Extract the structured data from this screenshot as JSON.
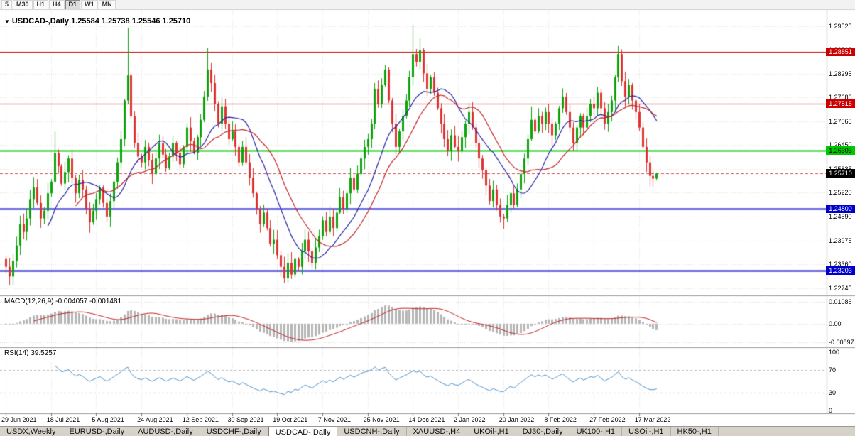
{
  "toolbar": {
    "timeframes": [
      "5",
      "M30",
      "H1",
      "H4",
      "D1",
      "W1",
      "MN"
    ],
    "active": "D1"
  },
  "icons": {
    "expand": "▼"
  },
  "chart": {
    "title": "USDCAD-,Daily",
    "quote": "1.25584 1.25738 1.25546 1.25710"
  },
  "indicators": {
    "macd": {
      "label": "MACD(12,26,9)",
      "values": "-0.004057 -0.001481",
      "axis": [
        "0.01086",
        "0.00",
        "-0.00897"
      ]
    },
    "rsi": {
      "label": "RSI(14)",
      "value": "39.5257",
      "axis": [
        "100",
        "70",
        "30",
        "0"
      ]
    }
  },
  "price_axis": {
    "labels": [
      "1.29525",
      "1.28910",
      "1.28295",
      "1.27680",
      "1.27065",
      "1.26450",
      "1.25835",
      "1.25220",
      "1.24590",
      "1.23975",
      "1.23360",
      "1.22745"
    ]
  },
  "levels": [
    {
      "price": 1.28851,
      "text": "1.28851",
      "color": "#cc0000",
      "width": 1,
      "text_color": "#ffffff"
    },
    {
      "price": 1.27515,
      "text": "1.27515",
      "color": "#cc0000",
      "width": 1,
      "text_color": "#ffffff"
    },
    {
      "price": 1.26303,
      "text": "1.26303",
      "color": "#00c800",
      "width": 2,
      "text_color": "#000000"
    },
    {
      "price": 1.248,
      "text": "1.24800",
      "color": "#0000cc",
      "width": 2,
      "text_color": "#ffffff"
    },
    {
      "price": 1.23203,
      "text": "1.23203",
      "color": "#0000cc",
      "width": 2,
      "text_color": "#ffffff"
    }
  ],
  "current_price": {
    "value": 1.2571,
    "text": "1.25710",
    "badge_color": "#000000",
    "text_color": "#ffffff"
  },
  "x_axis": {
    "dates": [
      "29 Jun 2021",
      "18 Jul 2021",
      "5 Aug 2021",
      "24 Aug 2021",
      "12 Sep 2021",
      "30 Sep 2021",
      "19 Oct 2021",
      "7 Nov 2021",
      "25 Nov 2021",
      "14 Dec 2021",
      "2 Jan 2022",
      "20 Jan 2022",
      "8 Feb 2022",
      "27 Feb 2022",
      "17 Mar 2022"
    ],
    "bars_per_tick": 13
  },
  "tabs": {
    "items": [
      "USDX,Weekly",
      "EURUSD-,Daily",
      "AUDUSD-,Daily",
      "USDCHF-,Daily",
      "USDCAD-,Daily",
      "USDCNH-,Daily",
      "XAUUSD-,H4",
      "UKOil-,H1",
      "DJ30-,Daily",
      "UK100-,H1",
      "USOil-,H1",
      "HK50-,H1"
    ],
    "active_index": 4
  },
  "colors": {
    "bull": "#0ca30c",
    "bear": "#e03232",
    "ma_fast": "#2323a8",
    "ma_slow": "#c22525",
    "macd_hist": "#b5b5b5",
    "macd_signal": "#c22525",
    "rsi_line": "#4f94cd",
    "grid": "#e4e4e4",
    "separator": "#9a9a9a",
    "bid_line": "#d05050"
  },
  "chart_data": {
    "type": "candlestick",
    "symbol": "USDCAD",
    "timeframe": "Daily",
    "y_range": [
      1.2256,
      1.2996
    ],
    "closes": [
      1.233,
      1.2305,
      1.2345,
      1.2385,
      1.244,
      1.242,
      1.2455,
      1.2505,
      1.2535,
      1.2495,
      1.2455,
      1.2475,
      1.252,
      1.255,
      1.2625,
      1.259,
      1.2545,
      1.2575,
      1.261,
      1.256,
      1.252,
      1.2555,
      1.253,
      1.248,
      1.2445,
      1.2475,
      1.2505,
      1.2535,
      1.2495,
      1.246,
      1.25,
      1.255,
      1.26,
      1.266,
      1.276,
      1.2825,
      1.272,
      1.265,
      1.2615,
      1.26,
      1.264,
      1.2605,
      1.257,
      1.261,
      1.265,
      1.262,
      1.2585,
      1.2615,
      1.265,
      1.2625,
      1.2595,
      1.264,
      1.269,
      1.2655,
      1.2625,
      1.2665,
      1.271,
      1.277,
      1.284,
      1.2805,
      1.275,
      1.27,
      1.2745,
      1.27,
      1.266,
      1.268,
      1.264,
      1.26,
      1.264,
      1.26,
      1.256,
      1.252,
      1.248,
      1.244,
      1.247,
      1.243,
      1.239,
      1.24,
      1.236,
      1.233,
      1.23,
      1.234,
      1.231,
      1.235,
      1.233,
      1.237,
      1.24,
      1.237,
      1.234,
      1.238,
      1.241,
      1.245,
      1.242,
      1.246,
      1.243,
      1.247,
      1.251,
      1.248,
      1.252,
      1.256,
      1.253,
      1.257,
      1.261,
      1.264,
      1.266,
      1.27,
      1.279,
      1.275,
      1.28,
      1.284,
      1.276,
      1.27,
      1.264,
      1.268,
      1.272,
      1.276,
      1.282,
      1.288,
      1.286,
      1.289,
      1.283,
      1.279,
      1.282,
      1.278,
      1.274,
      1.27,
      1.266,
      1.263,
      1.267,
      1.264,
      1.263,
      1.2665,
      1.27,
      1.273,
      1.269,
      1.265,
      1.261,
      1.258,
      1.254,
      1.25,
      1.253,
      1.249,
      1.246,
      1.2455,
      1.249,
      1.252,
      1.249,
      1.253,
      1.257,
      1.261,
      1.266,
      1.271,
      1.268,
      1.272,
      1.27,
      1.273,
      1.27,
      1.267,
      1.27,
      1.274,
      1.277,
      1.273,
      1.269,
      1.265,
      1.269,
      1.272,
      1.269,
      1.272,
      1.275,
      1.274,
      1.278,
      1.274,
      1.27,
      1.273,
      1.276,
      1.282,
      1.288,
      1.281,
      1.277,
      1.28,
      1.276,
      1.273,
      1.269,
      1.264,
      1.26,
      1.2565,
      1.2558,
      1.2571
    ],
    "spikes": {
      "4": {
        "h": 1.2462
      },
      "14": {
        "h": 1.268
      },
      "24": {
        "l": 1.2418
      },
      "35": {
        "h": 1.2948
      },
      "58": {
        "h": 1.2895
      },
      "80": {
        "l": 1.2288
      },
      "106": {
        "h": 1.2805
      },
      "109": {
        "h": 1.2852
      },
      "117": {
        "h": 1.2955
      },
      "119": {
        "h": 1.2921
      },
      "151": {
        "h": 1.2745
      },
      "176": {
        "h": 1.2901
      }
    },
    "last_candle": {
      "open": 1.25584,
      "high": 1.25738,
      "low": 1.25546,
      "close": 1.2571
    },
    "moving_averages": [
      {
        "period": 13,
        "color": "#2323a8"
      },
      {
        "period": 21,
        "color": "#c22525"
      }
    ],
    "macd": {
      "fast": 12,
      "slow": 26,
      "signal_period": 9,
      "main_last": -0.004057,
      "signal_last": -0.001481,
      "range": [
        -0.0115,
        0.0135
      ]
    },
    "rsi": {
      "period": 14,
      "last": 39.5257,
      "levels": [
        70,
        30
      ],
      "range": [
        0,
        100
      ]
    }
  }
}
